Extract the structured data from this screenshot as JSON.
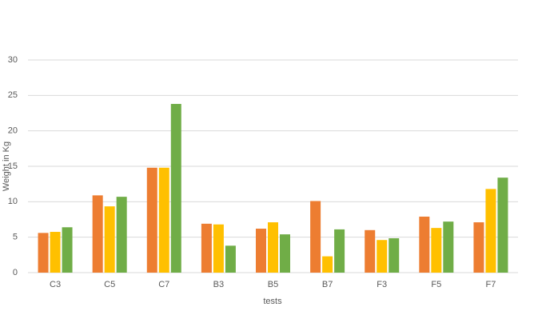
{
  "chart_data": {
    "type": "bar",
    "x_label": "tests",
    "y_label": "Weight in Kg",
    "categories": [
      "C3",
      "C5",
      "C7",
      "B3",
      "B5",
      "B7",
      "F3",
      "F5",
      "F7"
    ],
    "series": [
      {
        "color": "#ed7d31",
        "values": [
          5.6,
          10.9,
          14.8,
          6.9,
          6.2,
          10.1,
          6.0,
          7.9,
          7.1
        ]
      },
      {
        "color": "#ffc000",
        "values": [
          5.75,
          9.35,
          14.8,
          6.8,
          7.1,
          2.3,
          4.6,
          6.3,
          11.8
        ]
      },
      {
        "color": "#70ad47",
        "values": [
          6.4,
          10.7,
          23.8,
          3.8,
          5.4,
          6.1,
          4.85,
          7.2,
          13.4
        ]
      }
    ],
    "ylim": [
      0,
      30
    ],
    "yticks": [
      0,
      5,
      10,
      15,
      20,
      25,
      30
    ],
    "grid": true
  }
}
